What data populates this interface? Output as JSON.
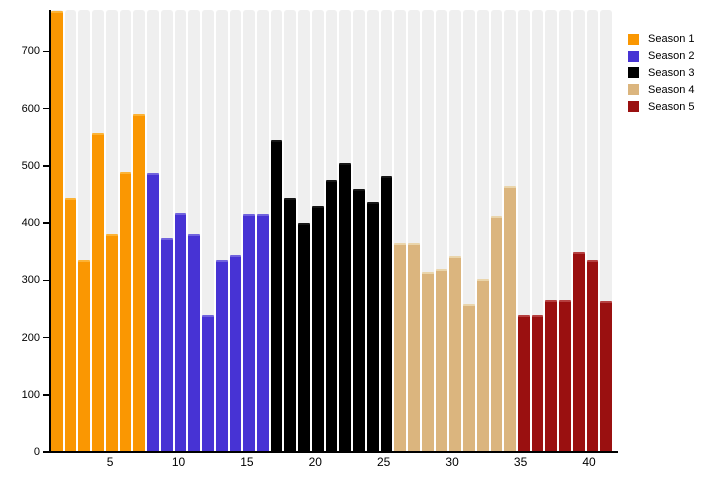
{
  "chart_data": {
    "type": "bar",
    "title": "",
    "xlabel": "",
    "ylabel": "",
    "x_range": [
      1,
      41
    ],
    "ylim": [
      0,
      772
    ],
    "y_tick_labels": [
      0,
      100,
      200,
      300,
      400,
      500,
      600,
      700
    ],
    "x_tick_labels": [
      5,
      10,
      15,
      20,
      25,
      30,
      35,
      40
    ],
    "grid": "full-height light background column behind every bar",
    "legend_position": "top-right",
    "background_column_color": "#EFEFEF",
    "axis_color": "#000000",
    "series": [
      {
        "name": "Season 1",
        "color": "#FA9702",
        "cap_color": "#FCB335",
        "first_x": 1,
        "values": [
          770,
          443,
          335,
          558,
          380,
          490,
          590
        ]
      },
      {
        "name": "Season 2",
        "color": "#4733D4",
        "cap_color": "#7163DE",
        "first_x": 8,
        "values": [
          487,
          373,
          417,
          381,
          240,
          335,
          345,
          415,
          415
        ]
      },
      {
        "name": "Season 3",
        "color": "#000000",
        "cap_color": "#161616",
        "first_x": 17,
        "values": [
          545,
          443,
          400,
          430,
          475,
          505,
          460,
          437,
          482
        ]
      },
      {
        "name": "Season 4",
        "color": "#DBB57E",
        "cap_color": "#EAD5AB",
        "first_x": 26,
        "values": [
          365,
          365,
          315,
          320,
          343,
          258,
          302,
          413,
          465
        ]
      },
      {
        "name": "Season 5",
        "color": "#9A1010",
        "cap_color": "#B54040",
        "first_x": 35,
        "values": [
          240,
          240,
          265,
          265,
          350,
          335,
          263
        ]
      }
    ]
  }
}
